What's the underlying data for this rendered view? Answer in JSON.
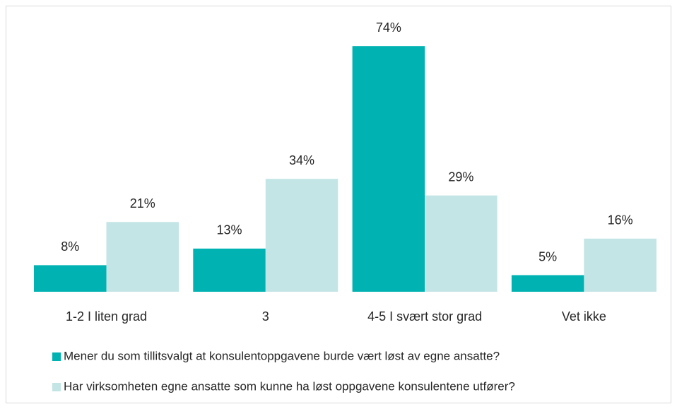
{
  "chart_data": {
    "type": "bar",
    "categories": [
      "1-2 I liten grad",
      "3",
      "4-5 I svært stor grad",
      "Vet ikke"
    ],
    "series": [
      {
        "name": "Mener du som tillitsvalgt at konsulentoppgavene burde vært løst av egne ansatte?",
        "color": "#00b2b2",
        "values": [
          8,
          13,
          74,
          5
        ],
        "value_labels": [
          "8%",
          "13%",
          "74%",
          "5%"
        ]
      },
      {
        "name": "Har virksomheten egne ansatte som kunne ha løst oppgavene konsulentene utfører?",
        "color": "#c3e5e6",
        "values": [
          21,
          34,
          29,
          16
        ],
        "value_labels": [
          "21%",
          "34%",
          "29%",
          "16%"
        ]
      }
    ]
  }
}
